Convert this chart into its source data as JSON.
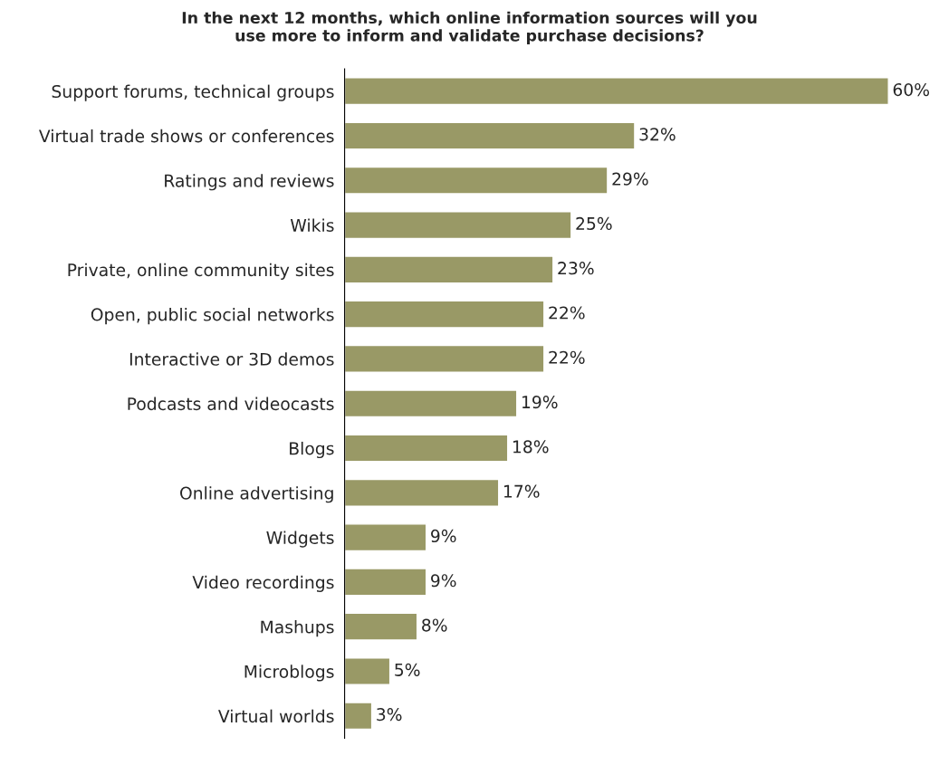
{
  "chart_data": {
    "type": "bar",
    "orientation": "horizontal",
    "title": "In the next 12 months, which online information sources will you\nuse more to inform and validate purchase decisions?",
    "categories": [
      "Support forums, technical groups",
      "Virtual trade shows or conferences",
      "Ratings and reviews",
      "Wikis",
      "Private, online community sites",
      "Open, public social networks",
      "Interactive or 3D demos",
      "Podcasts and videocasts",
      "Blogs",
      "Online advertising",
      "Widgets",
      "Video recordings",
      "Mashups",
      "Microblogs",
      "Virtual worlds"
    ],
    "values": [
      60,
      32,
      29,
      25,
      23,
      22,
      22,
      19,
      18,
      17,
      9,
      9,
      8,
      5,
      3
    ],
    "value_labels": [
      "60%",
      "32%",
      "29%",
      "25%",
      "23%",
      "22%",
      "22%",
      "19%",
      "18%",
      "17%",
      "9%",
      "9%",
      "8%",
      "5%",
      "3%"
    ],
    "color": "#999966",
    "grid": false,
    "legend": false
  }
}
